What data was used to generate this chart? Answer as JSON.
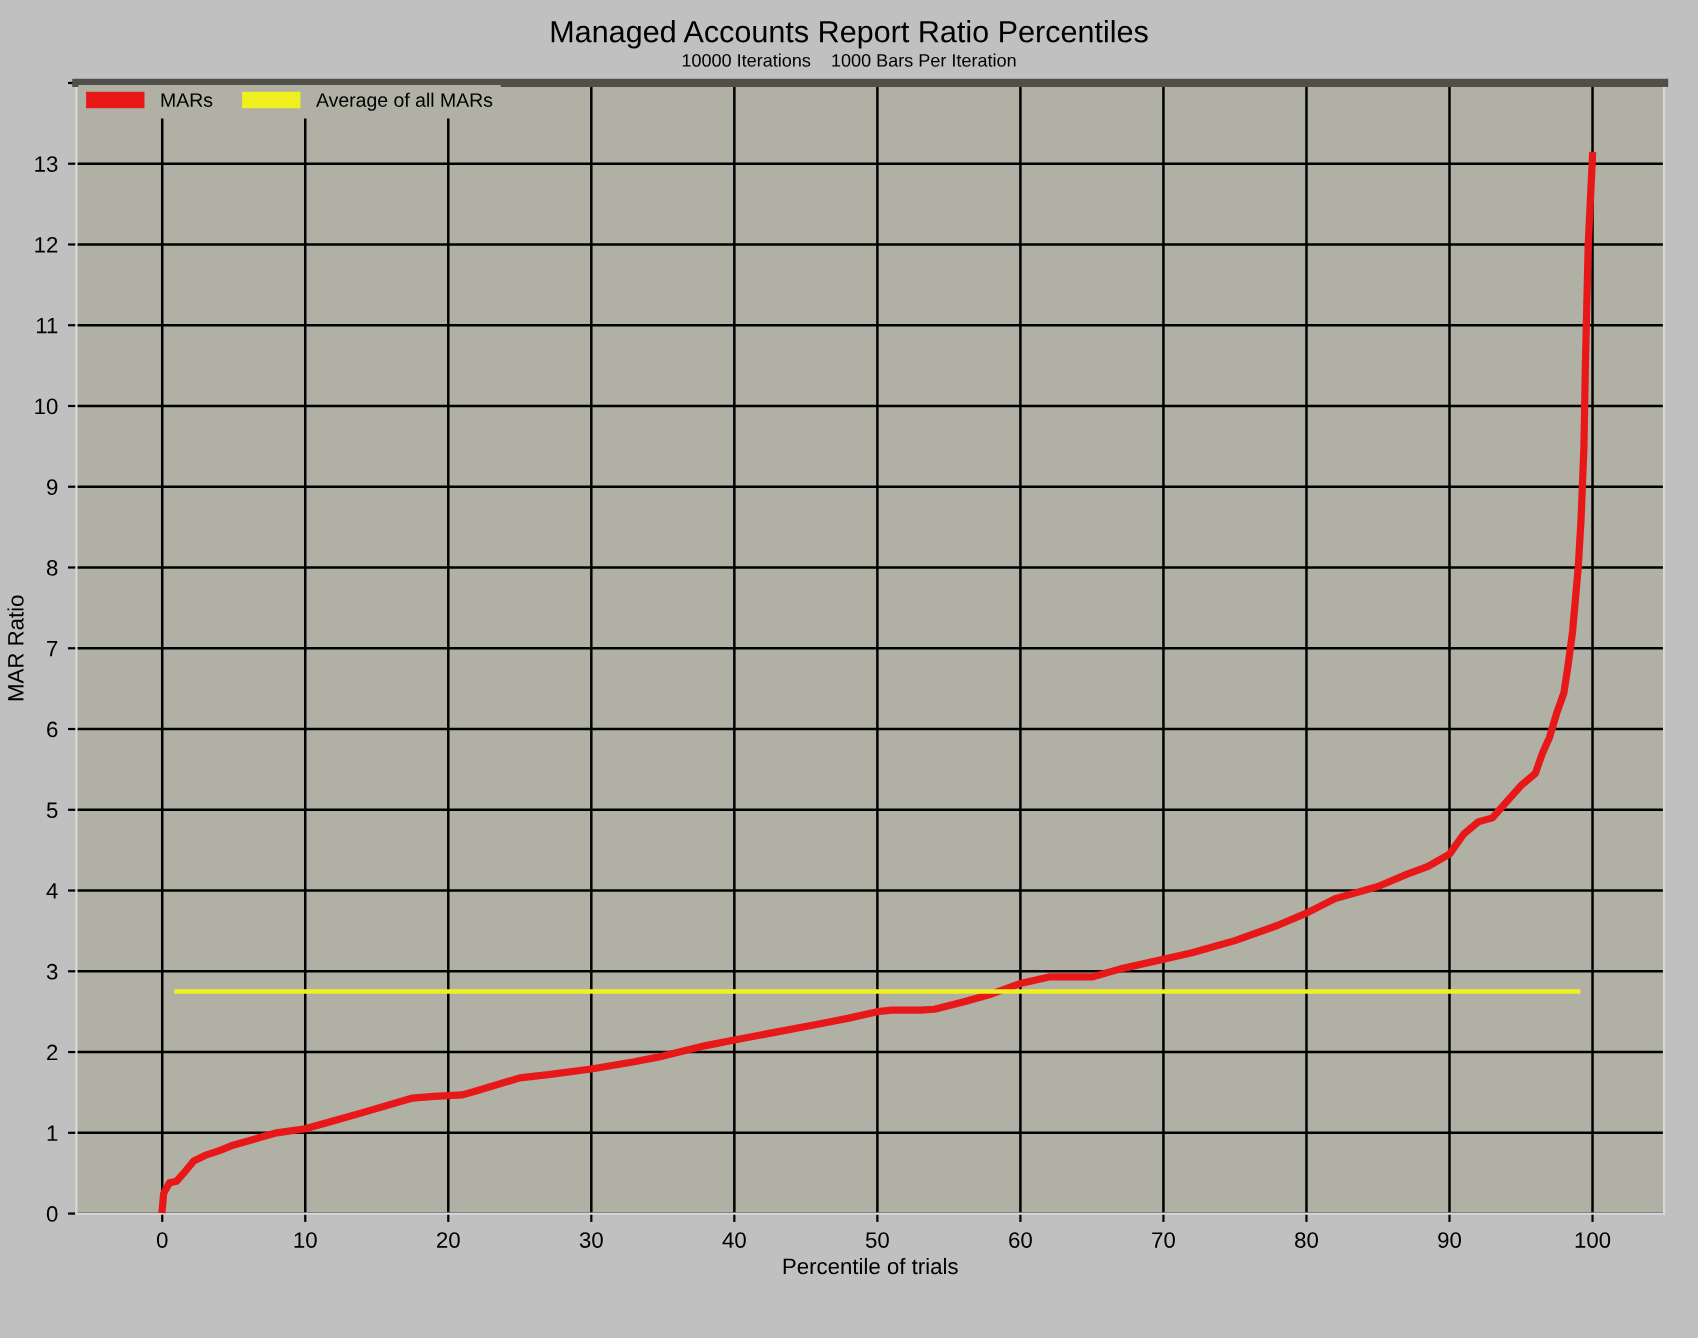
{
  "chart_data": {
    "type": "line",
    "title": "Managed Accounts Report Ratio Percentiles",
    "subtitle": "10000 Iterations    1000 Bars Per Iteration",
    "xlabel": "Percentile of trials",
    "ylabel": "MAR Ratio",
    "xlim": [
      -6,
      105
    ],
    "xticks": [
      0,
      10,
      20,
      30,
      40,
      50,
      60,
      70,
      80,
      90,
      100
    ],
    "ylim": [
      0,
      14
    ],
    "yticks": [
      0,
      1,
      2,
      3,
      4,
      5,
      6,
      7,
      8,
      9,
      10,
      11,
      12,
      13,
      {
        "value": 14,
        "label": null
      }
    ],
    "grid": true,
    "legend": "top left",
    "line_style": "solid",
    "marker": "none",
    "series": [
      {
        "name": "MARs",
        "color": "#e81818",
        "x": [
          0,
          0.1,
          0.5,
          1,
          1.5,
          2.2,
          3,
          4,
          5,
          7,
          8,
          10,
          12,
          14,
          17.5,
          19,
          21,
          22,
          25,
          27,
          30,
          33,
          35,
          38,
          40,
          43,
          46,
          48,
          50,
          51,
          53,
          54,
          56,
          58,
          60,
          62,
          65,
          67,
          70,
          72,
          75,
          78,
          80,
          82,
          85,
          87,
          88.5,
          90,
          91,
          92,
          93,
          94,
          95,
          96,
          96.5,
          97,
          97.5,
          98,
          98.3,
          98.6,
          98.8,
          99,
          99.2,
          99.4,
          99.5,
          99.7,
          100
        ],
        "values": [
          0.05,
          0.25,
          0.38,
          0.4,
          0.5,
          0.65,
          0.72,
          0.78,
          0.85,
          0.95,
          1.0,
          1.05,
          1.15,
          1.25,
          1.43,
          1.45,
          1.47,
          1.52,
          1.68,
          1.72,
          1.79,
          1.88,
          1.95,
          2.08,
          2.15,
          2.25,
          2.35,
          2.42,
          2.5,
          2.52,
          2.52,
          2.53,
          2.62,
          2.72,
          2.85,
          2.93,
          2.93,
          3.03,
          3.15,
          3.23,
          3.38,
          3.57,
          3.72,
          3.9,
          4.05,
          4.2,
          4.3,
          4.45,
          4.7,
          4.85,
          4.9,
          5.1,
          5.3,
          5.45,
          5.7,
          5.9,
          6.2,
          6.45,
          6.8,
          7.2,
          7.6,
          8.0,
          8.6,
          9.5,
          10.5,
          12.0,
          13.1
        ]
      },
      {
        "name": "Average of all MARs",
        "color": "#f0f020",
        "x": [
          1,
          99
        ],
        "values": [
          2.75,
          2.75
        ]
      }
    ]
  }
}
